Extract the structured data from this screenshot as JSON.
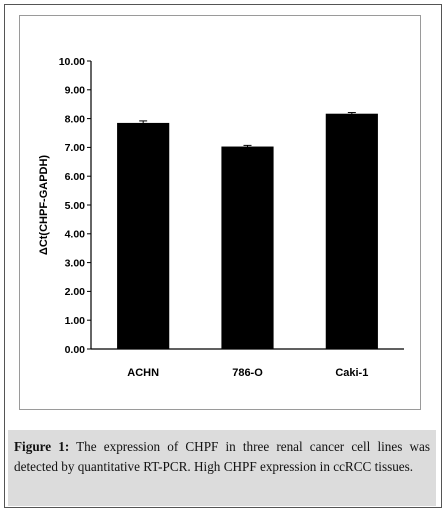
{
  "chart_data": {
    "type": "bar",
    "categories": [
      "ACHN",
      "786-O",
      "Caki-1"
    ],
    "values": [
      7.85,
      7.03,
      8.17
    ],
    "errors": [
      0.07,
      0.04,
      0.04
    ],
    "ylabel": "ΔCt(CHPF-GAPDH)",
    "xlabel": "",
    "ylim": [
      0,
      10
    ],
    "yticks": [
      "0.00",
      "1.00",
      "2.00",
      "3.00",
      "4.00",
      "5.00",
      "6.00",
      "7.00",
      "8.00",
      "9.00",
      "10.00"
    ],
    "bar_color": "#000000",
    "grid": false,
    "legend": false
  },
  "caption": {
    "label": "Figure 1:",
    "text": "The expression of CHPF in three renal cancer cell lines was detected by quantitative RT-PCR. High CHPF expression in ccRCC tissues."
  }
}
